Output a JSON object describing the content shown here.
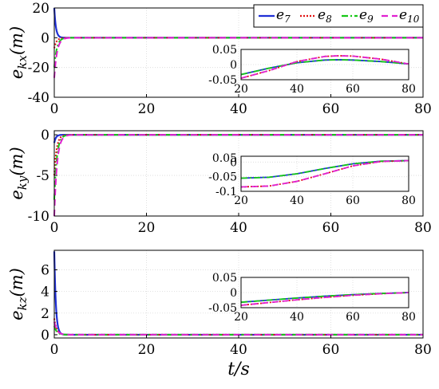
{
  "colors": {
    "e7": "#1f2fd6",
    "e8": "#e01010",
    "e9": "#16c716",
    "e10": "#e020d0"
  },
  "chart_data": [
    {
      "type": "line",
      "ylabel": "e_{kx}(m)",
      "xlabel": "",
      "xlim": [
        0,
        80
      ],
      "ylim": [
        -40,
        20
      ],
      "xticks": [
        "0",
        "20",
        "40",
        "60",
        "80"
      ],
      "yticks": [
        "-40",
        "-20",
        "0",
        "20"
      ],
      "ytick_values": [
        -40,
        -20,
        0,
        20
      ],
      "legend": [
        "e7",
        "e8",
        "e9",
        "e10"
      ],
      "legend_position": "top-right",
      "grid": true,
      "series": [
        {
          "name": "e7",
          "initial": 20
        },
        {
          "name": "e8",
          "initial": -7
        },
        {
          "name": "e9",
          "initial": -20
        },
        {
          "name": "e10",
          "initial": -27
        }
      ],
      "inset": {
        "xlim": [
          20,
          80
        ],
        "ylim": [
          -0.05,
          0.05
        ],
        "xticks": [
          "20",
          "40",
          "60",
          "80"
        ],
        "yticks": [
          "0.05",
          "0",
          "-0.05"
        ],
        "ytick_values": [
          0.05,
          0,
          -0.05
        ],
        "series": [
          {
            "name": "e7",
            "x": [
              20,
              30,
              40,
              50,
              55,
              60,
              70,
              80
            ],
            "y": [
              -0.033,
              -0.012,
              0.006,
              0.015,
              0.016,
              0.015,
              0.01,
              0.002
            ]
          },
          {
            "name": "e8",
            "x": [
              20,
              30,
              40,
              50,
              55,
              60,
              70,
              80
            ],
            "y": [
              -0.045,
              -0.02,
              0.01,
              0.027,
              0.029,
              0.028,
              0.018,
              0.002
            ]
          },
          {
            "name": "e9",
            "x": [
              20,
              30,
              40,
              50,
              55,
              60,
              70,
              80
            ],
            "y": [
              -0.033,
              -0.012,
              0.006,
              0.015,
              0.016,
              0.015,
              0.01,
              0.002
            ]
          },
          {
            "name": "e10",
            "x": [
              20,
              30,
              40,
              50,
              55,
              60,
              70,
              80
            ],
            "y": [
              -0.045,
              -0.02,
              0.01,
              0.027,
              0.029,
              0.028,
              0.018,
              0.002
            ]
          }
        ]
      }
    },
    {
      "type": "line",
      "ylabel": "e_{ky}(m)",
      "xlabel": "",
      "xlim": [
        0,
        80
      ],
      "ylim": [
        -10,
        0.5
      ],
      "xticks": [
        "0",
        "20",
        "40",
        "60",
        "80"
      ],
      "yticks": [
        "-10",
        "-5",
        "0"
      ],
      "ytick_values": [
        -10,
        -5,
        0
      ],
      "grid": true,
      "series": [
        {
          "name": "e7",
          "initial": -1
        },
        {
          "name": "e8",
          "initial": -5
        },
        {
          "name": "e9",
          "initial": -8
        },
        {
          "name": "e10",
          "initial": -10
        }
      ],
      "inset": {
        "xlim": [
          20,
          80
        ],
        "ylim": [
          -0.1,
          0.02
        ],
        "xticks": [
          "20",
          "40",
          "60",
          "80"
        ],
        "yticks": [
          "0.05",
          "0",
          "-0.05",
          "-0.1"
        ],
        "ytick_values": [
          0.05,
          0,
          -0.05,
          -0.1
        ],
        "series": [
          {
            "name": "e7",
            "x": [
              20,
              30,
              40,
              50,
              60,
              70,
              80
            ],
            "y": [
              -0.055,
              -0.052,
              -0.04,
              -0.022,
              -0.006,
              0.003,
              0.005
            ]
          },
          {
            "name": "e8",
            "x": [
              20,
              30,
              40,
              50,
              60,
              70,
              80
            ],
            "y": [
              -0.085,
              -0.082,
              -0.066,
              -0.04,
              -0.013,
              0.002,
              0.005
            ]
          },
          {
            "name": "e9",
            "x": [
              20,
              30,
              40,
              50,
              60,
              70,
              80
            ],
            "y": [
              -0.055,
              -0.052,
              -0.04,
              -0.022,
              -0.006,
              0.003,
              0.005
            ]
          },
          {
            "name": "e10",
            "x": [
              20,
              30,
              40,
              50,
              60,
              70,
              80
            ],
            "y": [
              -0.085,
              -0.082,
              -0.066,
              -0.04,
              -0.013,
              0.002,
              0.005
            ]
          }
        ]
      }
    },
    {
      "type": "line",
      "ylabel": "e_{kz}(m)",
      "xlabel": "t/s",
      "xlim": [
        0,
        80
      ],
      "ylim": [
        -0.3,
        7.8
      ],
      "xticks": [
        "0",
        "20",
        "40",
        "60",
        "80"
      ],
      "yticks": [
        "0",
        "2",
        "4",
        "6"
      ],
      "ytick_values": [
        0,
        2,
        4,
        6
      ],
      "grid": true,
      "series": [
        {
          "name": "e7",
          "initial": 7.7
        },
        {
          "name": "e8",
          "initial": 1.5
        },
        {
          "name": "e9",
          "initial": 0.8
        },
        {
          "name": "e10",
          "initial": 1.2
        }
      ],
      "inset": {
        "xlim": [
          20,
          80
        ],
        "ylim": [
          -0.05,
          0.05
        ],
        "xticks": [
          "20",
          "40",
          "60",
          "80"
        ],
        "yticks": [
          "0.05",
          "0",
          "-0.05"
        ],
        "ytick_values": [
          0.05,
          0,
          -0.05
        ],
        "series": [
          {
            "name": "e7",
            "x": [
              20,
              30,
              40,
              50,
              60,
              70,
              80
            ],
            "y": [
              -0.032,
              -0.025,
              -0.018,
              -0.012,
              -0.007,
              -0.003,
              0.0
            ]
          },
          {
            "name": "e8",
            "x": [
              20,
              30,
              40,
              50,
              60,
              70,
              80
            ],
            "y": [
              -0.042,
              -0.033,
              -0.024,
              -0.016,
              -0.009,
              -0.004,
              0.0
            ]
          },
          {
            "name": "e9",
            "x": [
              20,
              30,
              40,
              50,
              60,
              70,
              80
            ],
            "y": [
              -0.032,
              -0.025,
              -0.018,
              -0.012,
              -0.007,
              -0.003,
              0.0
            ]
          },
          {
            "name": "e10",
            "x": [
              20,
              30,
              40,
              50,
              60,
              70,
              80
            ],
            "y": [
              -0.042,
              -0.033,
              -0.024,
              -0.016,
              -0.009,
              -0.004,
              0.0
            ]
          }
        ]
      }
    }
  ]
}
